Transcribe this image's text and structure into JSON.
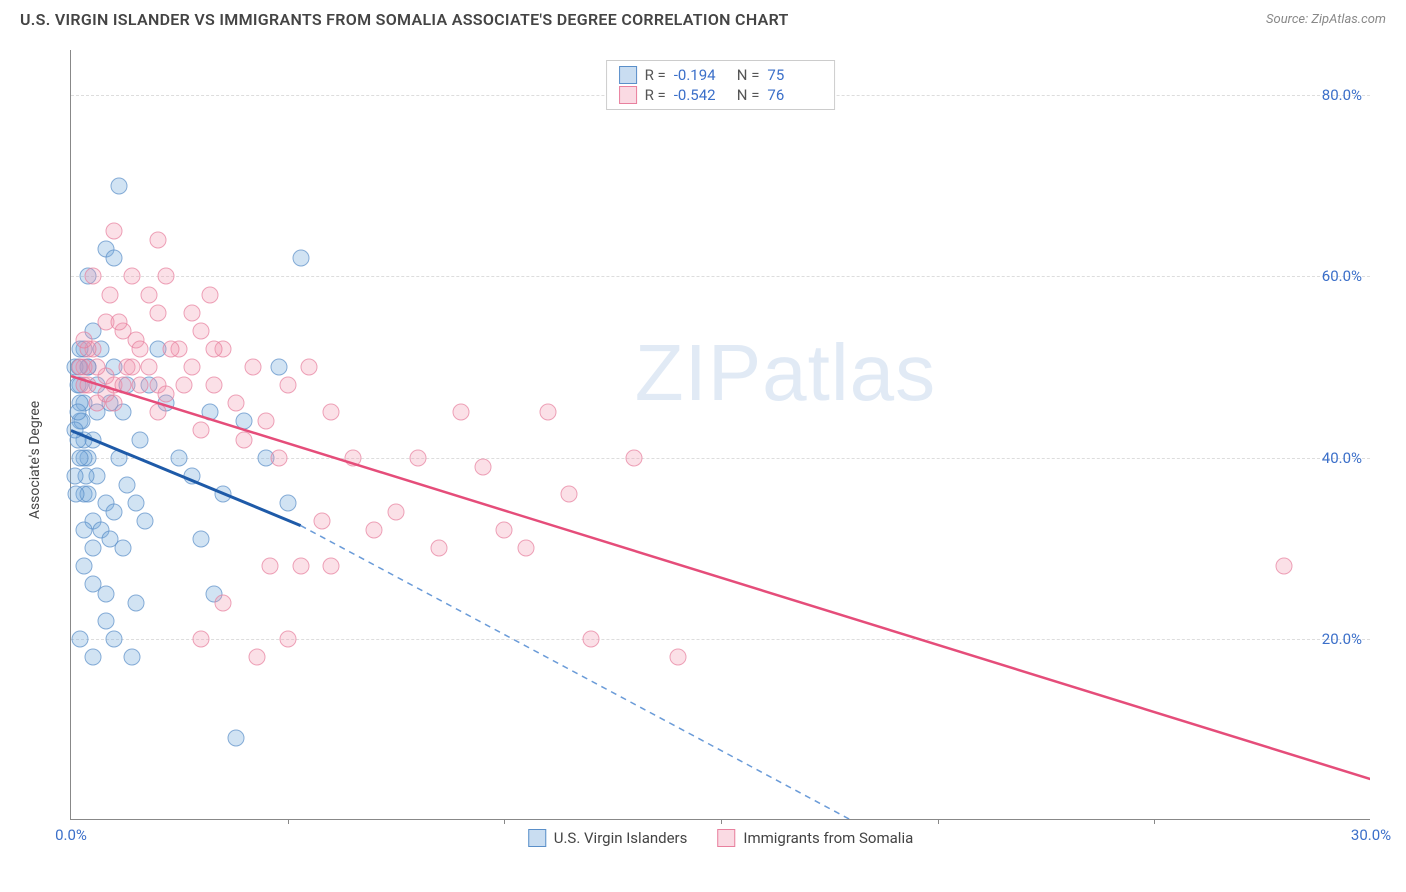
{
  "header": {
    "title": "U.S. VIRGIN ISLANDER VS IMMIGRANTS FROM SOMALIA ASSOCIATE'S DEGREE CORRELATION CHART",
    "source": "Source: ZipAtlas.com"
  },
  "watermark": {
    "part1": "ZIP",
    "part2": "atlas"
  },
  "chart": {
    "type": "scatter",
    "ylabel": "Associate's Degree",
    "xlim": [
      0,
      30
    ],
    "ylim": [
      0,
      85
    ],
    "xtick_labels": [
      "0.0%",
      "30.0%"
    ],
    "xtick_positions": [
      0,
      30
    ],
    "xtick_minor": [
      5,
      10,
      15,
      20,
      25
    ],
    "ytick_labels": [
      "20.0%",
      "40.0%",
      "60.0%",
      "80.0%"
    ],
    "ytick_positions": [
      20,
      40,
      60,
      80
    ],
    "grid_color": "#dddddd",
    "axis_color": "#888888",
    "label_color": "#3b6fc9",
    "background_color": "#ffffff",
    "marker_size": 17,
    "series": [
      {
        "name": "U.S. Virgin Islanders",
        "color_key": "blue",
        "fill": "rgba(120,170,220,0.45)",
        "stroke": "#5a8fc9",
        "R": "-0.194",
        "N": "75",
        "trend": {
          "x1": 0,
          "y1": 43,
          "x2": 5.3,
          "y2": 32.5,
          "solid_stroke": "#1e5aa8",
          "solid_width": 3,
          "dash_x2": 18,
          "dash_y2": 0,
          "dash_stroke": "#6a9bd8"
        },
        "points": [
          [
            0.2,
            48
          ],
          [
            0.3,
            46
          ],
          [
            0.4,
            50
          ],
          [
            0.5,
            42
          ],
          [
            0.6,
            38
          ],
          [
            0.3,
            36
          ],
          [
            0.8,
            35
          ],
          [
            0.5,
            33
          ],
          [
            0.7,
            32
          ],
          [
            0.9,
            31
          ],
          [
            0.4,
            40
          ],
          [
            0.6,
            45
          ],
          [
            0.2,
            44
          ],
          [
            1.0,
            34
          ],
          [
            1.2,
            30
          ],
          [
            0.3,
            28
          ],
          [
            0.5,
            26
          ],
          [
            0.8,
            25
          ],
          [
            1.5,
            24
          ],
          [
            0.3,
            52
          ],
          [
            0.5,
            54
          ],
          [
            0.8,
            63
          ],
          [
            1.0,
            62
          ],
          [
            1.1,
            70
          ],
          [
            0.4,
            60
          ],
          [
            1.8,
            48
          ],
          [
            2.2,
            46
          ],
          [
            2.5,
            40
          ],
          [
            2.8,
            38
          ],
          [
            3.2,
            45
          ],
          [
            3.5,
            36
          ],
          [
            3.0,
            31
          ],
          [
            3.8,
            9
          ],
          [
            3.3,
            25
          ],
          [
            4.0,
            44
          ],
          [
            4.5,
            40
          ],
          [
            4.8,
            50
          ],
          [
            5.3,
            62
          ],
          [
            5.0,
            35
          ],
          [
            2.0,
            52
          ],
          [
            1.3,
            48
          ],
          [
            1.6,
            42
          ],
          [
            0.2,
            20
          ],
          [
            0.5,
            18
          ],
          [
            0.8,
            22
          ],
          [
            1.0,
            20
          ],
          [
            1.4,
            18
          ],
          [
            0.3,
            42
          ],
          [
            0.6,
            48
          ],
          [
            0.9,
            46
          ],
          [
            1.1,
            40
          ],
          [
            1.3,
            37
          ],
          [
            1.5,
            35
          ],
          [
            1.7,
            33
          ],
          [
            0.4,
            50
          ],
          [
            0.7,
            52
          ],
          [
            1.0,
            50
          ],
          [
            1.2,
            45
          ],
          [
            0.3,
            32
          ],
          [
            0.5,
            30
          ],
          [
            0.1,
            50
          ],
          [
            0.15,
            48
          ],
          [
            0.2,
            46
          ],
          [
            0.25,
            44
          ],
          [
            0.3,
            40
          ],
          [
            0.35,
            38
          ],
          [
            0.4,
            36
          ],
          [
            0.15,
            42
          ],
          [
            0.2,
            52
          ],
          [
            0.1,
            43
          ],
          [
            0.15,
            45
          ],
          [
            0.2,
            40
          ],
          [
            0.1,
            38
          ],
          [
            0.12,
            36
          ],
          [
            0.18,
            50
          ]
        ]
      },
      {
        "name": "Immigrants from Somalia",
        "color_key": "pink",
        "fill": "rgba(240,150,175,0.4)",
        "stroke": "#e8809e",
        "R": "-0.542",
        "N": "76",
        "trend": {
          "x1": 0,
          "y1": 49,
          "x2": 30,
          "y2": 4.5,
          "solid_stroke": "#e54d7a",
          "solid_width": 2.5
        },
        "points": [
          [
            0.3,
            50
          ],
          [
            0.5,
            52
          ],
          [
            0.8,
            49
          ],
          [
            1.0,
            48
          ],
          [
            1.2,
            54
          ],
          [
            1.5,
            53
          ],
          [
            1.8,
            58
          ],
          [
            2.0,
            56
          ],
          [
            2.2,
            60
          ],
          [
            2.0,
            64
          ],
          [
            2.5,
            52
          ],
          [
            2.8,
            50
          ],
          [
            3.0,
            54
          ],
          [
            3.3,
            48
          ],
          [
            3.5,
            52
          ],
          [
            3.8,
            46
          ],
          [
            4.0,
            42
          ],
          [
            4.5,
            44
          ],
          [
            4.8,
            40
          ],
          [
            5.0,
            48
          ],
          [
            5.5,
            50
          ],
          [
            5.8,
            33
          ],
          [
            6.0,
            28
          ],
          [
            6.0,
            45
          ],
          [
            6.5,
            40
          ],
          [
            7.0,
            32
          ],
          [
            7.5,
            34
          ],
          [
            8.0,
            40
          ],
          [
            8.5,
            30
          ],
          [
            9.0,
            45
          ],
          [
            9.5,
            39
          ],
          [
            10.0,
            32
          ],
          [
            10.5,
            30
          ],
          [
            11.0,
            45
          ],
          [
            11.5,
            36
          ],
          [
            12.0,
            20
          ],
          [
            13.0,
            40
          ],
          [
            14.0,
            18
          ],
          [
            28.0,
            28
          ],
          [
            0.5,
            60
          ],
          [
            0.8,
            55
          ],
          [
            1.0,
            65
          ],
          [
            1.3,
            50
          ],
          [
            1.6,
            48
          ],
          [
            2.0,
            45
          ],
          [
            0.3,
            48
          ],
          [
            0.6,
            46
          ],
          [
            0.2,
            50
          ],
          [
            0.4,
            52
          ],
          [
            2.3,
            52
          ],
          [
            2.6,
            48
          ],
          [
            3.0,
            43
          ],
          [
            3.3,
            52
          ],
          [
            5.3,
            28
          ],
          [
            4.3,
            18
          ],
          [
            5.0,
            20
          ],
          [
            3.5,
            24
          ],
          [
            2.8,
            56
          ],
          [
            3.2,
            58
          ],
          [
            1.4,
            60
          ],
          [
            1.1,
            55
          ],
          [
            0.9,
            58
          ],
          [
            4.2,
            50
          ],
          [
            4.6,
            28
          ],
          [
            3.0,
            20
          ],
          [
            0.4,
            48
          ],
          [
            0.6,
            50
          ],
          [
            0.8,
            47
          ],
          [
            1.0,
            46
          ],
          [
            1.2,
            48
          ],
          [
            1.4,
            50
          ],
          [
            1.6,
            52
          ],
          [
            1.8,
            50
          ],
          [
            2.0,
            48
          ],
          [
            2.2,
            47
          ],
          [
            0.3,
            53
          ]
        ]
      }
    ],
    "legend_top": {
      "R_label": "R  =",
      "N_label": "N  ="
    },
    "legend_bottom": [
      {
        "swatch": "blue",
        "label": "U.S. Virgin Islanders"
      },
      {
        "swatch": "pink",
        "label": "Immigrants from Somalia"
      }
    ]
  }
}
